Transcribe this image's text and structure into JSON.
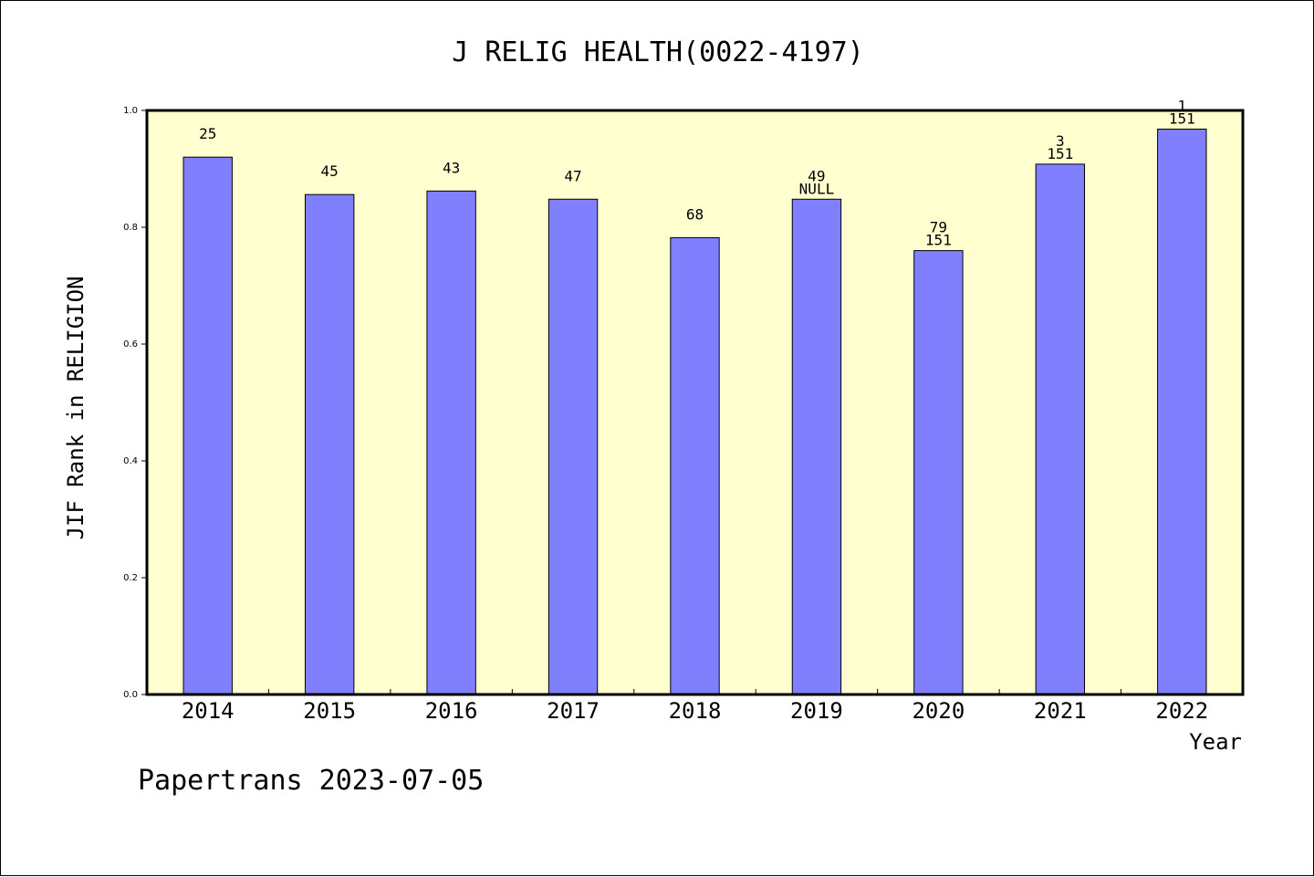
{
  "chart_data": {
    "type": "bar",
    "title": "J RELIG HEALTH(0022-4197)",
    "xlabel": "Year",
    "ylabel": "JIF Rank in RELIGION",
    "ylim": [
      0,
      1.0
    ],
    "yticks": [
      "0.0",
      "0.2",
      "0.4",
      "0.6",
      "0.8",
      "1.0"
    ],
    "categories": [
      "2014",
      "2015",
      "2016",
      "2017",
      "2018",
      "2019",
      "2020",
      "2021",
      "2022"
    ],
    "values": [
      0.92,
      0.856,
      0.862,
      0.848,
      0.782,
      0.848,
      0.76,
      0.908,
      0.968
    ],
    "labels": [
      [
        "25"
      ],
      [
        "45"
      ],
      [
        "43"
      ],
      [
        "47"
      ],
      [
        "68"
      ],
      [
        "49",
        "NULL"
      ],
      [
        "79",
        "151"
      ],
      [
        "3",
        "151"
      ],
      [
        "1",
        "151"
      ]
    ],
    "grid": false,
    "colors": {
      "bar": "#8080ff",
      "plot_background": "#ffffd0",
      "axis": "#000000"
    }
  },
  "footer": {
    "text": "Papertrans 2023-07-05"
  }
}
